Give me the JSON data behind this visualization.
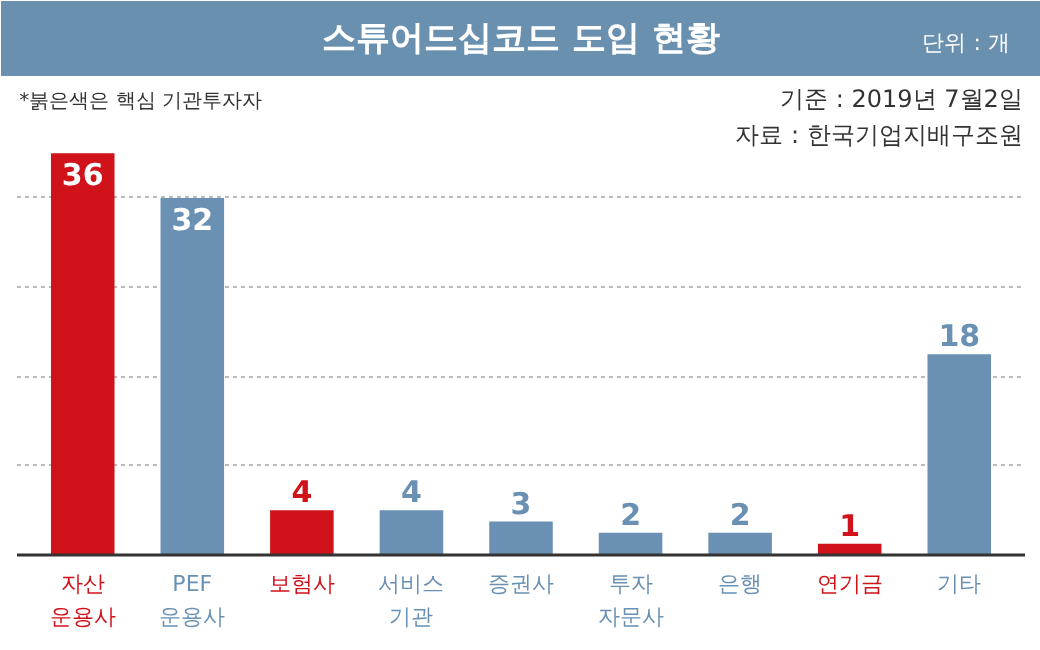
{
  "chart_data": {
    "type": "bar",
    "title": "스튜어드십코드 도입 현황",
    "annotations": [
      "단위 : 개",
      "*붉은색은 핵심 기관투자자",
      "기준 : 2019년 7월2일",
      "자료 : 한국기업지배구조원"
    ],
    "categories": [
      "자산\n운용사",
      "PEF\n운용사",
      "보험사",
      "서비스\n기관",
      "증권사",
      "투자\n자문사",
      "은행",
      "연기금",
      "기타"
    ],
    "values": [
      36,
      32,
      4,
      4,
      3,
      2,
      2,
      1,
      18
    ],
    "colors": [
      "#d0121b",
      "#6a91b3",
      "#d0121b",
      "#6a91b3",
      "#6a91b3",
      "#6a91b3",
      "#6a91b3",
      "#d0121b",
      "#6a91b3"
    ],
    "yticks": [
      {
        "value": 8,
        "label": null
      },
      {
        "value": 16,
        "label": null
      },
      {
        "value": 24,
        "label": null
      },
      {
        "value": 32,
        "label": null
      }
    ],
    "grid": "y",
    "data_labels": true,
    "tick_labels": false
  }
}
